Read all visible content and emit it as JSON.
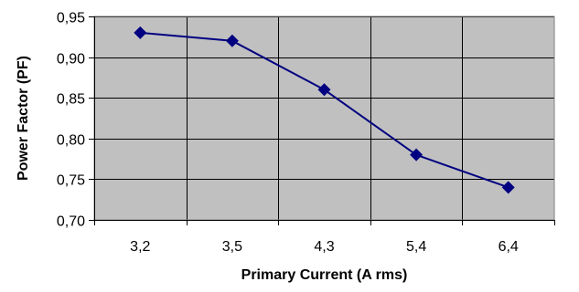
{
  "chart_data": {
    "type": "line",
    "title": "",
    "xlabel": "Primary Current (A rms)",
    "ylabel": "Power Factor (PF)",
    "categories": [
      "3,2",
      "3,5",
      "4,3",
      "5,4",
      "6,4"
    ],
    "series": [
      {
        "values": [
          0.93,
          0.92,
          0.86,
          0.78,
          0.74
        ],
        "color": "#000080",
        "marker": "diamond"
      }
    ],
    "ylim": [
      0.7,
      0.95
    ],
    "yticks": [
      0.7,
      0.75,
      0.8,
      0.85,
      0.9,
      0.95
    ],
    "ytick_labels": [
      "0,70",
      "0,75",
      "0,80",
      "0,85",
      "0,90",
      "0,95"
    ],
    "grid": true,
    "legend": "none",
    "colors": {
      "plot_background": "#c0c0c0",
      "gridline": "#000000",
      "series": "#000080"
    }
  }
}
